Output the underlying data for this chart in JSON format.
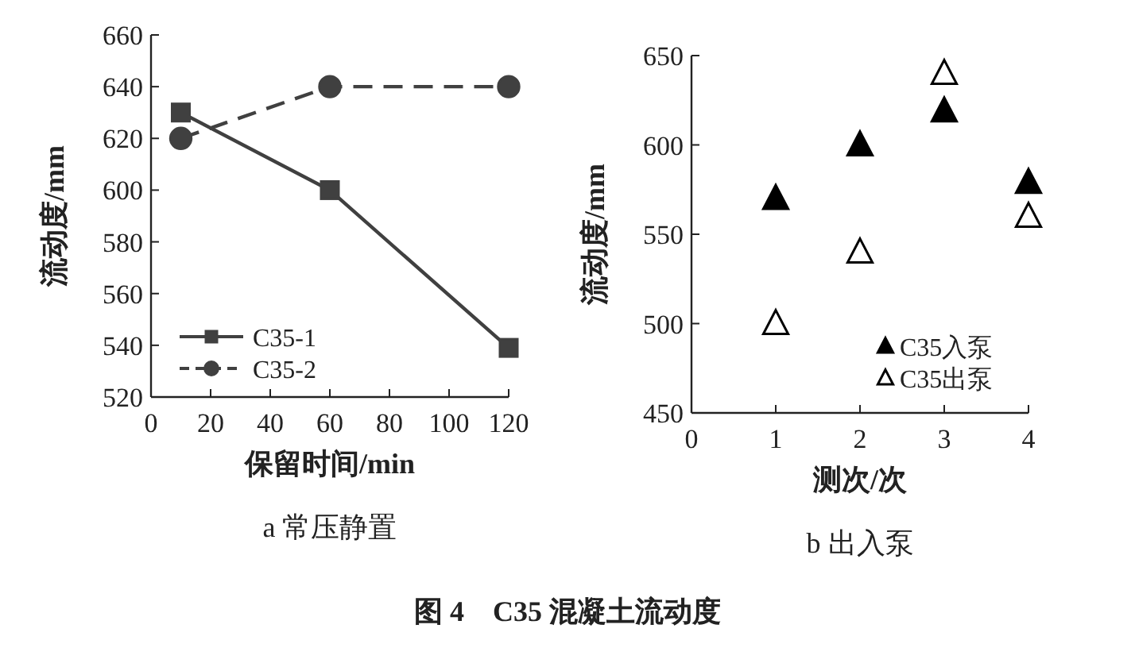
{
  "chart_data": [
    {
      "type": "line",
      "xlabel": "保留时间/min",
      "ylabel": "流动度/mm",
      "subtitle": "a 常压静置",
      "x": [
        10,
        60,
        120
      ],
      "xlim": [
        0,
        120
      ],
      "xticks": [
        0,
        20,
        40,
        60,
        80,
        100,
        120
      ],
      "ylim": [
        520,
        660
      ],
      "yticks": [
        520,
        540,
        560,
        580,
        600,
        620,
        640,
        660
      ],
      "legend": "bottom left",
      "annotations": [
        "图 4　C35 混凝土流动度"
      ],
      "series": [
        {
          "name": "C35-1",
          "color": "#404040",
          "marker": "square",
          "line_style": "solid",
          "values": [
            630,
            600,
            539
          ]
        },
        {
          "name": "C35-2",
          "color": "#404040",
          "marker": "circle",
          "line_style": "dashed",
          "values": [
            620,
            640,
            640
          ]
        }
      ]
    },
    {
      "type": "scatter",
      "xlabel": "测次/次",
      "ylabel": "流动度/mm",
      "subtitle": "b 出入泵",
      "x": [
        1,
        2,
        3,
        4
      ],
      "xlim": [
        0,
        4
      ],
      "xticks": [
        0,
        1,
        2,
        3,
        4
      ],
      "ylim": [
        450,
        650
      ],
      "yticks": [
        450,
        500,
        550,
        600,
        650
      ],
      "legend": "bottom right",
      "marker": "triangle",
      "series": [
        {
          "name": "C35入泵",
          "color": "#000000",
          "values": [
            570,
            600,
            619,
            579
          ]
        },
        {
          "name": "C35出泵",
          "color": "#ffffff",
          "values": [
            500,
            540,
            640,
            560
          ]
        }
      ]
    }
  ]
}
